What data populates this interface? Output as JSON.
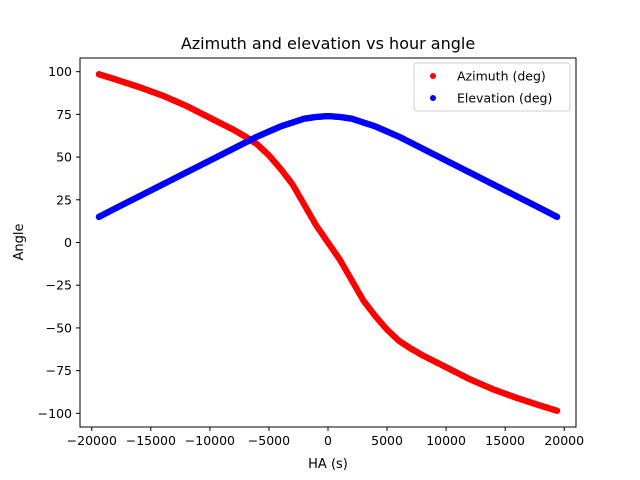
{
  "chart_data": {
    "type": "scatter",
    "title": "Azimuth and elevation vs hour angle",
    "xlabel": "HA (s)",
    "ylabel": "Angle",
    "xlim": [
      -21000,
      21000
    ],
    "ylim": [
      -108,
      108
    ],
    "xticks": [
      -20000,
      -15000,
      -10000,
      -5000,
      0,
      5000,
      10000,
      15000,
      20000
    ],
    "xtick_labels": [
      "−20000",
      "−15000",
      "−10000",
      "−5000",
      "0",
      "5000",
      "10000",
      "15000",
      "20000"
    ],
    "yticks": [
      -100,
      -75,
      -50,
      -25,
      0,
      25,
      50,
      75,
      100
    ],
    "ytick_labels": [
      "−100",
      "−75",
      "−50",
      "−25",
      "0",
      "25",
      "50",
      "75",
      "100"
    ],
    "grid": false,
    "legend_position": "upper-right",
    "series": [
      {
        "name": "Azimuth (deg)",
        "color": "#ff0000",
        "x": [
          -19400,
          -18000,
          -16000,
          -14000,
          -12000,
          -10000,
          -8000,
          -7000,
          -6000,
          -5000,
          -4000,
          -3000,
          -2000,
          -1000,
          -500,
          0,
          500,
          1000,
          2000,
          3000,
          4000,
          5000,
          6000,
          7000,
          8000,
          10000,
          12000,
          14000,
          16000,
          18000,
          19400
        ],
        "y": [
          98.5,
          95.5,
          91,
          86,
          80,
          73,
          66,
          62,
          57.5,
          51,
          43,
          34,
          22,
          10,
          5,
          0,
          -5,
          -10,
          -22,
          -34,
          -43,
          -51,
          -57.5,
          -62,
          -66,
          -73,
          -80,
          -86,
          -91,
          -95.5,
          -98.5
        ]
      },
      {
        "name": "Elevation (deg)",
        "color": "#0000ff",
        "x": [
          -19400,
          -18000,
          -16000,
          -14000,
          -12000,
          -10000,
          -8000,
          -6000,
          -4000,
          -2000,
          -1000,
          0,
          1000,
          2000,
          4000,
          6000,
          8000,
          10000,
          12000,
          14000,
          16000,
          18000,
          19400
        ],
        "y": [
          15,
          20,
          27,
          34,
          41,
          48,
          55,
          62,
          68,
          72.5,
          73.5,
          74,
          73.5,
          72.5,
          68,
          62,
          55,
          48,
          41,
          34,
          27,
          20,
          15
        ]
      }
    ]
  }
}
